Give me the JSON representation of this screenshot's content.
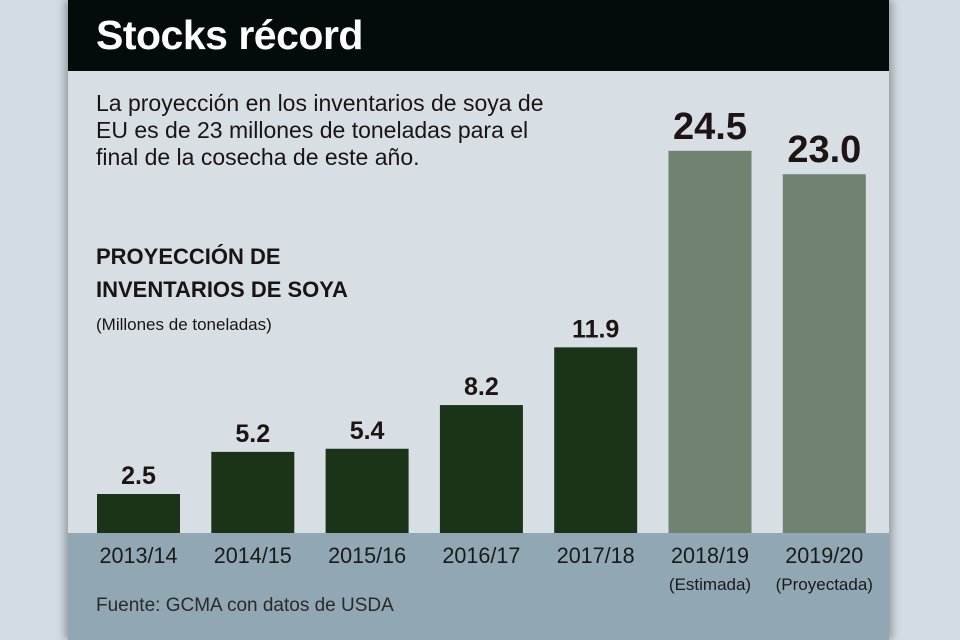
{
  "header": {
    "title": "Stocks récord"
  },
  "description": "La proyección en los inventarios de soya de EU es de 23 millones de toneladas para el final de la cosecha de este año.",
  "chart_data": {
    "type": "bar",
    "title": "PROYECCIÓN DE INVENTARIOS DE SOYA",
    "ylabel": "(Millones de toneladas)",
    "categories": [
      "2013/14",
      "2014/15",
      "2015/16",
      "2016/17",
      "2017/18",
      "2018/19",
      "2019/20"
    ],
    "category_notes": [
      "",
      "",
      "",
      "",
      "",
      "(Estimada)",
      "(Proyectada)"
    ],
    "values": [
      2.5,
      5.2,
      5.4,
      8.2,
      11.9,
      24.5,
      23.0
    ],
    "value_labels": [
      "2.5",
      "5.2",
      "5.4",
      "8.2",
      "11.9",
      "24.5",
      "23.0"
    ],
    "ylim": [
      0,
      25
    ],
    "grid": false,
    "colors": {
      "actual": "#1b3318",
      "estimate": "#728270"
    },
    "source": "Fuente: GCMA con datos de USDA"
  }
}
